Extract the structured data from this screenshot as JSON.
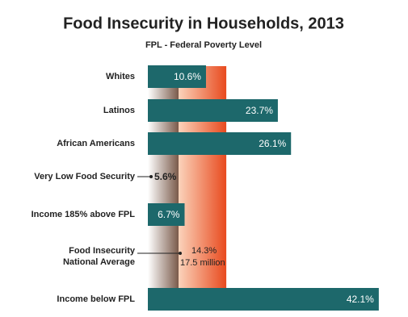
{
  "chart_data": {
    "type": "bar",
    "title": "Food Insecurity in Households, 2013",
    "subtitle": "FPL - Federal Poverty Level",
    "categories": [
      "Whites",
      "Latinos",
      "African Americans",
      "Very Low Food Security",
      "Income 185% above FPL",
      "Food Insecurity\nNational Average",
      "Income below FPL"
    ],
    "values": [
      10.6,
      23.7,
      26.1,
      5.6,
      6.7,
      14.3,
      42.1
    ],
    "value_labels": [
      "10.6%",
      "23.7%",
      "26.1%",
      "5.6%",
      "6.7%",
      "14.3%",
      "42.1%"
    ],
    "marks": [
      "bar",
      "bar",
      "bar",
      "band",
      "bar",
      "band",
      "bar"
    ],
    "annotation": "17.5 million",
    "color": "#1d686b",
    "band_colors": [
      "#7a5a4a",
      "#e84a1e"
    ]
  }
}
